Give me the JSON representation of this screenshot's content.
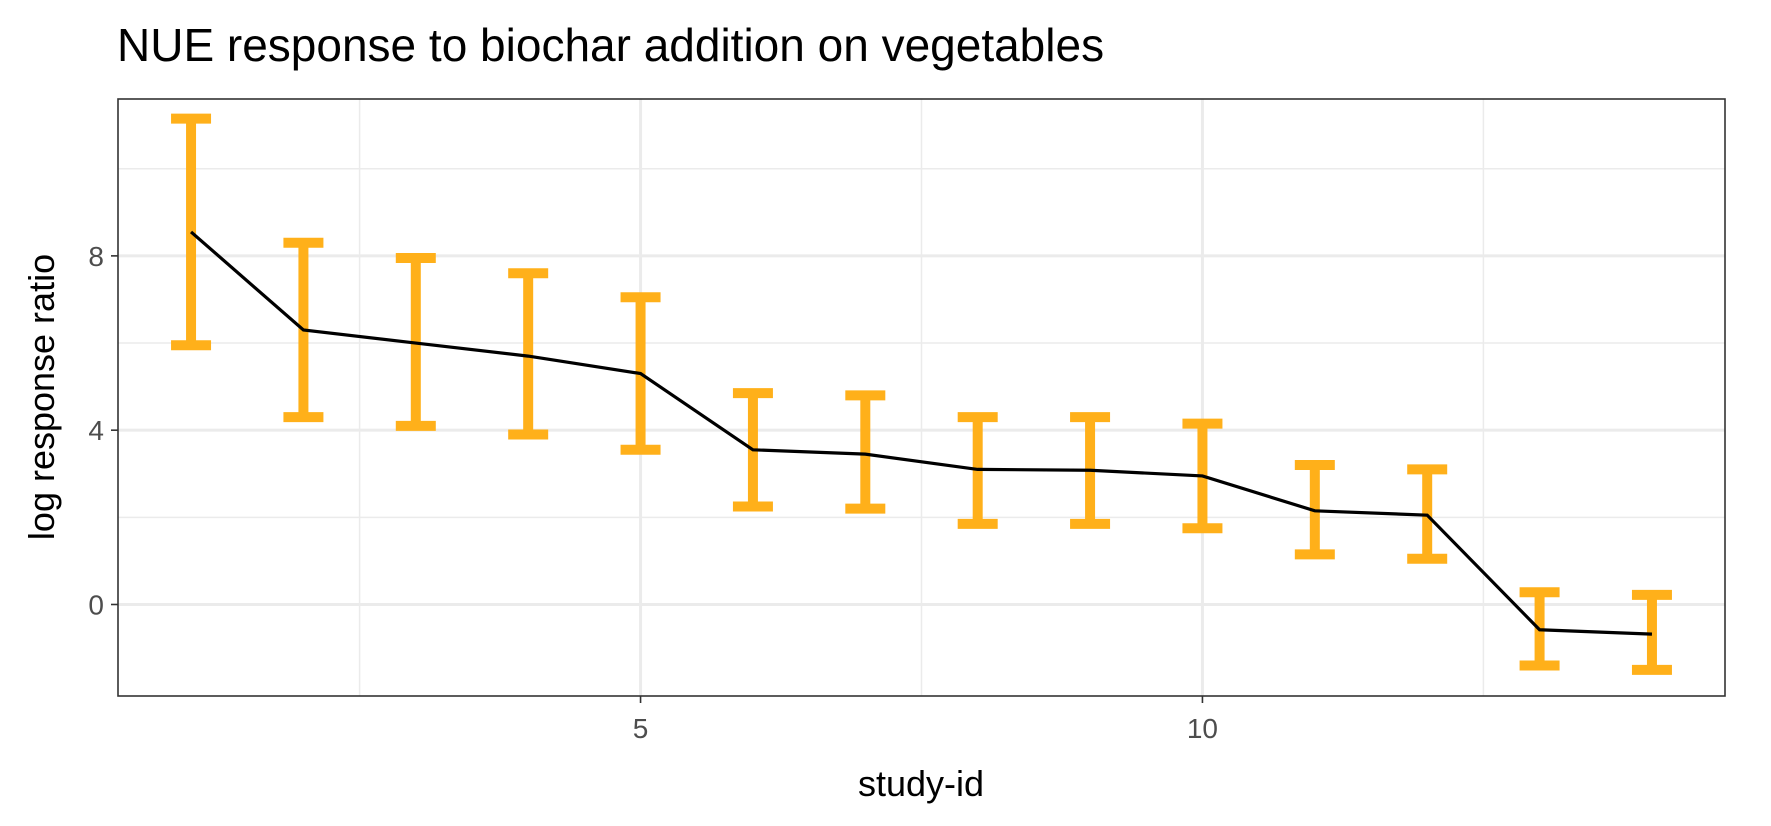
{
  "chart_data": {
    "type": "line",
    "title": "NUE response to biochar addition on vegetables",
    "xlabel": "study-id",
    "ylabel": "log response ratio",
    "xlim": [
      0.35,
      14.65
    ],
    "ylim": [
      -2.1,
      11.6
    ],
    "xticks": [
      5,
      10
    ],
    "xticks_minor": [
      2.5,
      7.5,
      12.5
    ],
    "yticks": [
      0,
      4,
      8
    ],
    "yticks_minor": [
      2,
      6,
      10
    ],
    "grid": true,
    "legend": "none",
    "series": [
      {
        "x": [
          1,
          2,
          3,
          4,
          5,
          6,
          7,
          8,
          9,
          10,
          11,
          12,
          13,
          14
        ],
        "y": [
          8.55,
          6.3,
          6.0,
          5.7,
          5.3,
          3.55,
          3.45,
          3.1,
          3.08,
          2.95,
          2.15,
          2.05,
          -0.58,
          -0.68
        ],
        "ymin": [
          5.95,
          4.3,
          4.1,
          3.9,
          3.55,
          2.25,
          2.2,
          1.85,
          1.85,
          1.75,
          1.15,
          1.05,
          -1.4,
          -1.5
        ],
        "ymax": [
          11.15,
          8.3,
          7.95,
          7.6,
          7.05,
          4.85,
          4.8,
          4.3,
          4.3,
          4.15,
          3.2,
          3.1,
          0.28,
          0.22
        ]
      }
    ],
    "colors": {
      "errorbar": "#FFB01A",
      "line": "#000000",
      "grid": "#EBEBEB",
      "panel_border": "#333333"
    }
  }
}
